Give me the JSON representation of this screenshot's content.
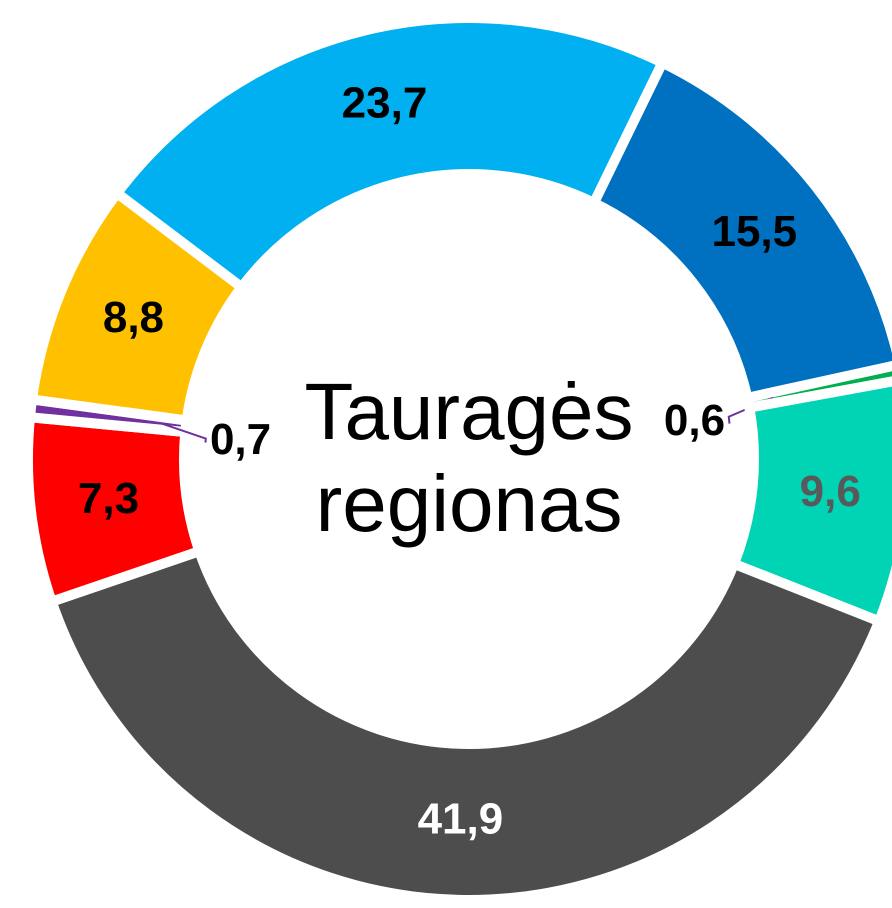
{
  "chart_data": {
    "type": "pie",
    "center_text": [
      "Tauragės",
      "regionas"
    ],
    "values": [
      15.5,
      0.6,
      9.6,
      41.9,
      7.3,
      0.7,
      8.8,
      23.7
    ],
    "value_labels": [
      "15,5",
      "0,6",
      "9,6",
      "41,9",
      "7,3",
      "0,7",
      "8,8",
      "23,7"
    ],
    "colors": [
      "#0070c0",
      "#00b050",
      "#00d4b4",
      "#4d4d4d",
      "#ff0000",
      "#7030a0",
      "#ffc000",
      "#00b0f0"
    ],
    "label_colors": [
      "#000000",
      "#000000",
      "#595959",
      "#ffffff",
      "#000000",
      "#000000",
      "#000000",
      "#000000"
    ],
    "leader_color": "#7030a0",
    "donut": true
  }
}
